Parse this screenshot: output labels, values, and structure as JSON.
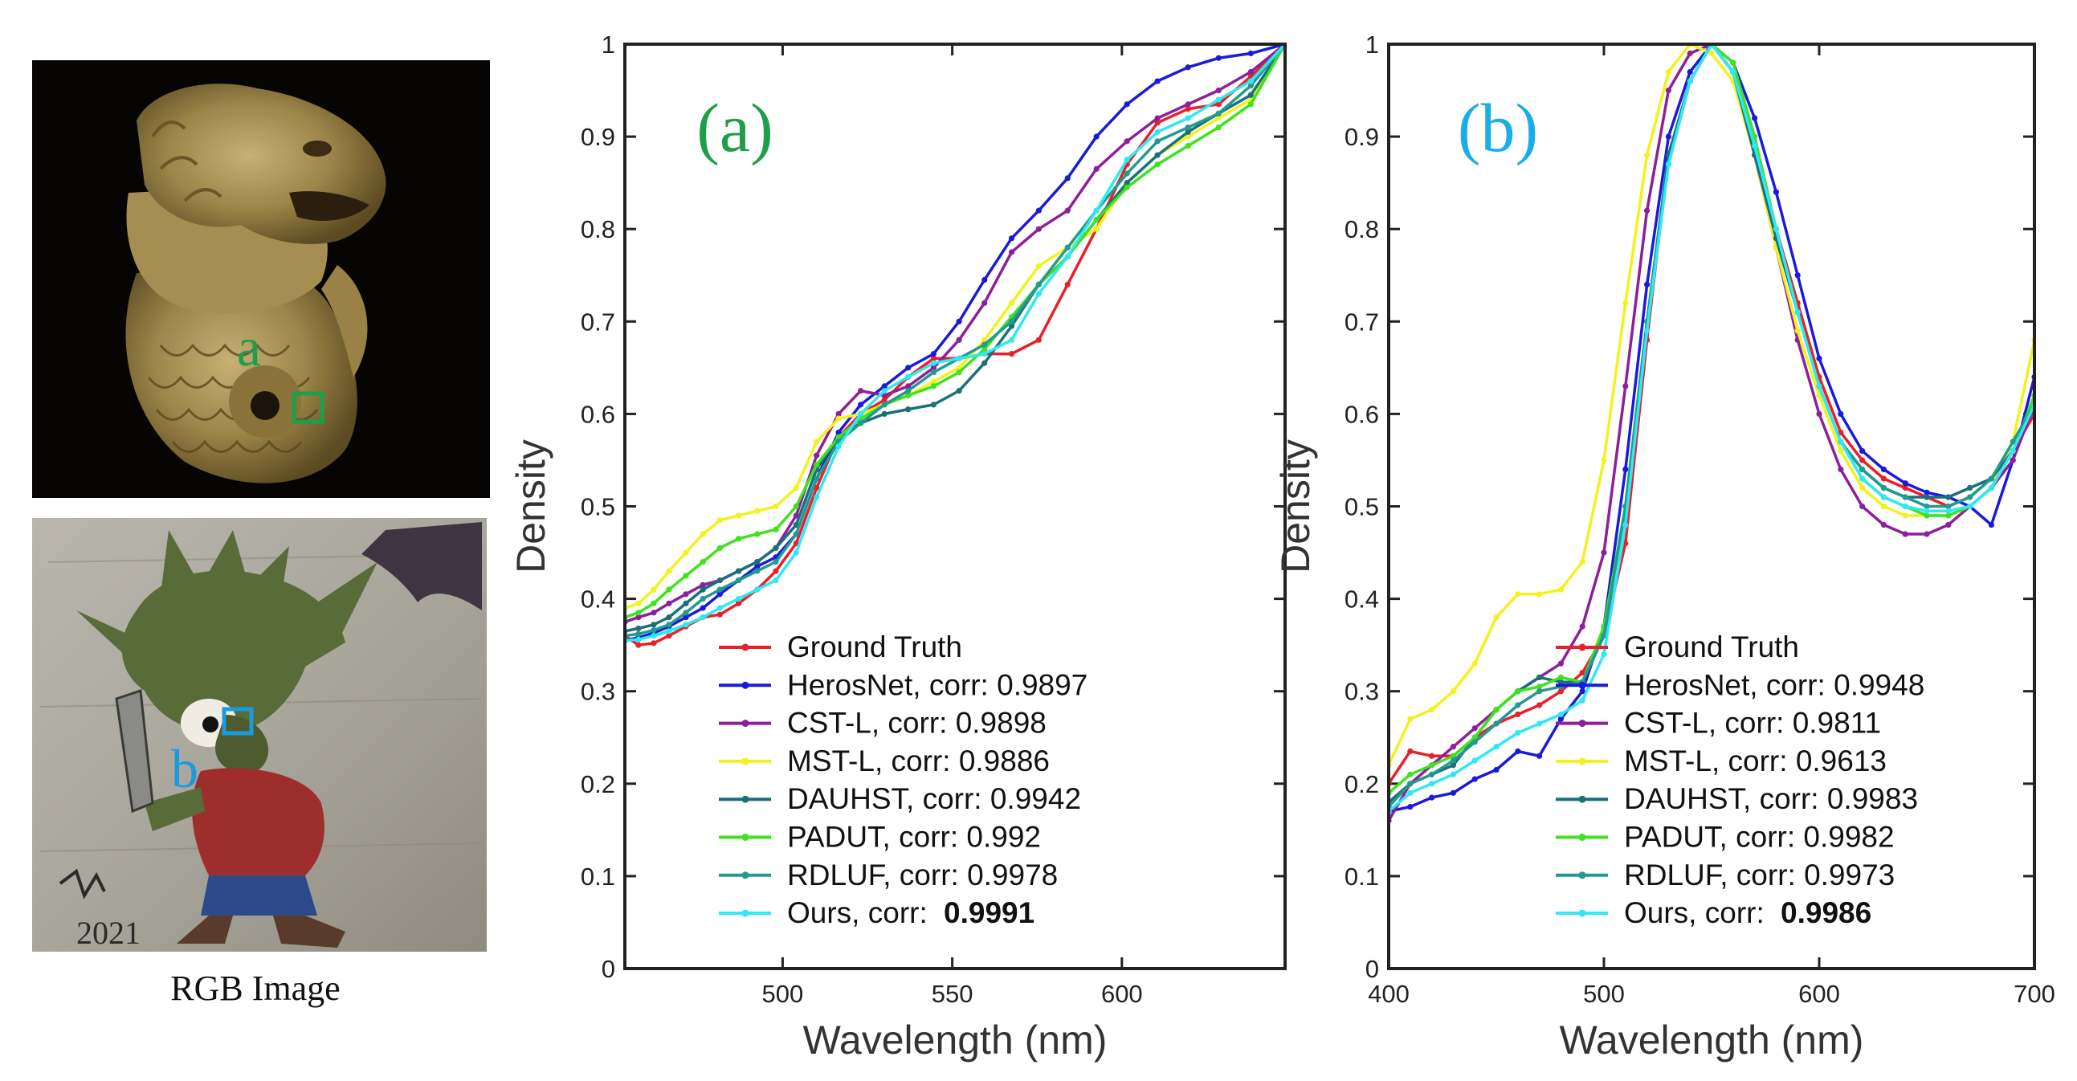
{
  "images": {
    "caption": "RGB Image",
    "top_marker": "a",
    "bottom_marker": "b",
    "signature": "2021",
    "top_marker_color": "#1f9e4a",
    "bottom_marker_color": "#1a9be0"
  },
  "colors": {
    "Ground Truth": "#e8202a",
    "HerosNet": "#1a1adb",
    "CST-L": "#8e1f9a",
    "MST-L": "#f2f21e",
    "DAUHST": "#1a6f7a",
    "PADUT": "#3fe21e",
    "RDLUF": "#239a90",
    "Ours": "#2ee8f4"
  },
  "chart_data": [
    {
      "type": "line",
      "panel_label": "(a)",
      "panel_color": "#1f9e4a",
      "xlabel": "Wavelength (nm)",
      "ylabel": "Density",
      "xlim": [
        453.5,
        648.1
      ],
      "ylim": [
        0,
        1
      ],
      "xticks": [
        500,
        550,
        600
      ],
      "yticks": [
        0,
        0.1,
        0.2,
        0.3,
        0.4,
        0.5,
        0.6,
        0.7,
        0.8,
        0.9,
        1
      ],
      "x": [
        453.5,
        457.5,
        462.0,
        466.5,
        471.5,
        476.5,
        481.5,
        487.0,
        492.5,
        498.0,
        504.0,
        510.0,
        516.5,
        523.0,
        530.0,
        537.0,
        544.5,
        552.0,
        559.5,
        567.5,
        575.5,
        584.0,
        592.5,
        601.5,
        610.5,
        619.5,
        628.5,
        638.0,
        648.1
      ],
      "series": [
        {
          "name": "Ground Truth",
          "label": "Ground Truth",
          "corr": "",
          "values": [
            0.36,
            0.35,
            0.352,
            0.36,
            0.37,
            0.38,
            0.383,
            0.395,
            0.41,
            0.43,
            0.46,
            0.52,
            0.575,
            0.6,
            0.615,
            0.64,
            0.66,
            0.66,
            0.665,
            0.665,
            0.68,
            0.74,
            0.8,
            0.87,
            0.915,
            0.93,
            0.935,
            0.965,
            1.0
          ]
        },
        {
          "name": "HerosNet",
          "label": "HerosNet, corr: ",
          "corr": "0.9897",
          "values": [
            0.355,
            0.358,
            0.363,
            0.37,
            0.38,
            0.39,
            0.405,
            0.42,
            0.435,
            0.445,
            0.47,
            0.53,
            0.58,
            0.61,
            0.63,
            0.65,
            0.665,
            0.7,
            0.745,
            0.79,
            0.82,
            0.855,
            0.9,
            0.935,
            0.96,
            0.975,
            0.985,
            0.99,
            1.0
          ]
        },
        {
          "name": "CST-L",
          "label": "CST-L, corr: ",
          "corr": "0.9898",
          "values": [
            0.375,
            0.38,
            0.385,
            0.395,
            0.405,
            0.415,
            0.42,
            0.43,
            0.44,
            0.455,
            0.49,
            0.555,
            0.6,
            0.625,
            0.62,
            0.63,
            0.65,
            0.68,
            0.72,
            0.775,
            0.8,
            0.82,
            0.865,
            0.895,
            0.92,
            0.935,
            0.95,
            0.97,
            1.0
          ]
        },
        {
          "name": "MST-L",
          "label": "MST-L, corr: ",
          "corr": "0.9886",
          "values": [
            0.39,
            0.395,
            0.41,
            0.43,
            0.45,
            0.47,
            0.485,
            0.49,
            0.495,
            0.5,
            0.52,
            0.57,
            0.595,
            0.6,
            0.61,
            0.62,
            0.635,
            0.65,
            0.68,
            0.72,
            0.76,
            0.78,
            0.8,
            0.85,
            0.88,
            0.9,
            0.92,
            0.94,
            1.0
          ]
        },
        {
          "name": "DAUHST",
          "label": "DAUHST, corr: ",
          "corr": "0.9942",
          "values": [
            0.365,
            0.368,
            0.372,
            0.38,
            0.395,
            0.41,
            0.42,
            0.43,
            0.44,
            0.455,
            0.48,
            0.54,
            0.575,
            0.59,
            0.6,
            0.605,
            0.61,
            0.625,
            0.655,
            0.695,
            0.74,
            0.77,
            0.81,
            0.85,
            0.88,
            0.905,
            0.925,
            0.945,
            1.0
          ]
        },
        {
          "name": "PADUT",
          "label": "PADUT, corr: ",
          "corr": "0.992",
          "values": [
            0.38,
            0.385,
            0.395,
            0.41,
            0.425,
            0.44,
            0.455,
            0.465,
            0.47,
            0.475,
            0.5,
            0.545,
            0.575,
            0.595,
            0.61,
            0.62,
            0.63,
            0.645,
            0.67,
            0.705,
            0.74,
            0.77,
            0.81,
            0.845,
            0.87,
            0.89,
            0.91,
            0.935,
            1.0
          ]
        },
        {
          "name": "RDLUF",
          "label": "RDLUF, corr: ",
          "corr": "0.9978",
          "values": [
            0.36,
            0.362,
            0.366,
            0.372,
            0.385,
            0.4,
            0.41,
            0.42,
            0.43,
            0.44,
            0.47,
            0.53,
            0.57,
            0.59,
            0.61,
            0.625,
            0.645,
            0.66,
            0.675,
            0.7,
            0.74,
            0.78,
            0.82,
            0.86,
            0.895,
            0.91,
            0.925,
            0.955,
            1.0
          ]
        },
        {
          "name": "Ours",
          "label": "Ours, corr:  ",
          "corr": "0.9991",
          "values": [
            0.355,
            0.356,
            0.36,
            0.365,
            0.372,
            0.38,
            0.39,
            0.4,
            0.41,
            0.42,
            0.45,
            0.51,
            0.565,
            0.6,
            0.625,
            0.64,
            0.655,
            0.66,
            0.665,
            0.68,
            0.73,
            0.77,
            0.82,
            0.875,
            0.905,
            0.92,
            0.94,
            0.96,
            1.0
          ]
        }
      ]
    },
    {
      "type": "line",
      "panel_label": "(b)",
      "panel_color": "#1aaee8",
      "xlabel": "Wavelength (nm)",
      "ylabel": "Density",
      "xlim": [
        400,
        700
      ],
      "ylim": [
        0,
        1
      ],
      "xticks": [
        400,
        500,
        600,
        700
      ],
      "yticks": [
        0,
        0.1,
        0.2,
        0.3,
        0.4,
        0.5,
        0.6,
        0.7,
        0.8,
        0.9,
        1
      ],
      "x": [
        400,
        410,
        420,
        430,
        440,
        450,
        460,
        470,
        480,
        490,
        500,
        510,
        520,
        530,
        540,
        550,
        560,
        570,
        580,
        590,
        600,
        610,
        620,
        630,
        640,
        650,
        660,
        670,
        680,
        690,
        700
      ],
      "series": [
        {
          "name": "Ground Truth",
          "label": "Ground Truth",
          "corr": "",
          "values": [
            0.2,
            0.235,
            0.23,
            0.23,
            0.25,
            0.265,
            0.275,
            0.285,
            0.3,
            0.32,
            0.36,
            0.46,
            0.68,
            0.88,
            0.96,
            1.0,
            0.97,
            0.89,
            0.8,
            0.72,
            0.64,
            0.58,
            0.55,
            0.53,
            0.52,
            0.51,
            0.5,
            0.51,
            0.53,
            0.56,
            0.6
          ]
        },
        {
          "name": "HerosNet",
          "label": "HerosNet, corr: ",
          "corr": "0.9948",
          "values": [
            0.17,
            0.175,
            0.185,
            0.19,
            0.205,
            0.215,
            0.235,
            0.23,
            0.27,
            0.3,
            0.37,
            0.54,
            0.74,
            0.9,
            0.97,
            1.0,
            0.98,
            0.92,
            0.84,
            0.75,
            0.66,
            0.6,
            0.56,
            0.54,
            0.525,
            0.515,
            0.51,
            0.5,
            0.48,
            0.55,
            0.64
          ]
        },
        {
          "name": "CST-L",
          "label": "CST-L, corr: ",
          "corr": "0.9811",
          "values": [
            0.16,
            0.2,
            0.22,
            0.24,
            0.26,
            0.28,
            0.3,
            0.315,
            0.33,
            0.37,
            0.45,
            0.63,
            0.82,
            0.95,
            0.99,
            1.0,
            0.97,
            0.88,
            0.78,
            0.68,
            0.6,
            0.54,
            0.5,
            0.48,
            0.47,
            0.47,
            0.48,
            0.5,
            0.52,
            0.55,
            0.61
          ]
        },
        {
          "name": "MST-L",
          "label": "MST-L, corr: ",
          "corr": "0.9613",
          "values": [
            0.22,
            0.27,
            0.28,
            0.3,
            0.33,
            0.38,
            0.405,
            0.405,
            0.41,
            0.44,
            0.55,
            0.72,
            0.88,
            0.97,
            1.0,
            0.99,
            0.96,
            0.88,
            0.78,
            0.69,
            0.62,
            0.56,
            0.52,
            0.5,
            0.49,
            0.49,
            0.49,
            0.5,
            0.52,
            0.57,
            0.68
          ]
        },
        {
          "name": "DAUHST",
          "label": "DAUHST, corr: ",
          "corr": "0.9983",
          "values": [
            0.18,
            0.2,
            0.21,
            0.22,
            0.25,
            0.28,
            0.3,
            0.315,
            0.31,
            0.31,
            0.36,
            0.5,
            0.7,
            0.88,
            0.96,
            1.0,
            0.97,
            0.88,
            0.79,
            0.71,
            0.63,
            0.57,
            0.54,
            0.52,
            0.51,
            0.51,
            0.51,
            0.52,
            0.53,
            0.56,
            0.62
          ]
        },
        {
          "name": "PADUT",
          "label": "PADUT, corr: ",
          "corr": "0.9982",
          "values": [
            0.19,
            0.21,
            0.22,
            0.23,
            0.25,
            0.28,
            0.3,
            0.305,
            0.315,
            0.31,
            0.37,
            0.5,
            0.7,
            0.87,
            0.96,
            1.0,
            0.98,
            0.9,
            0.8,
            0.71,
            0.63,
            0.57,
            0.53,
            0.51,
            0.5,
            0.49,
            0.49,
            0.5,
            0.52,
            0.56,
            0.62
          ]
        },
        {
          "name": "RDLUF",
          "label": "RDLUF, corr: ",
          "corr": "0.9973",
          "values": [
            0.175,
            0.2,
            0.21,
            0.225,
            0.245,
            0.265,
            0.285,
            0.3,
            0.305,
            0.31,
            0.36,
            0.5,
            0.7,
            0.87,
            0.96,
            1.0,
            0.97,
            0.89,
            0.8,
            0.71,
            0.63,
            0.57,
            0.54,
            0.52,
            0.51,
            0.5,
            0.5,
            0.51,
            0.53,
            0.57,
            0.61
          ]
        },
        {
          "name": "Ours",
          "label": "Ours, corr:  ",
          "corr": "0.9986",
          "values": [
            0.17,
            0.19,
            0.2,
            0.21,
            0.225,
            0.24,
            0.255,
            0.265,
            0.275,
            0.29,
            0.34,
            0.48,
            0.69,
            0.87,
            0.96,
            1.0,
            0.97,
            0.89,
            0.8,
            0.71,
            0.63,
            0.57,
            0.53,
            0.51,
            0.5,
            0.495,
            0.495,
            0.5,
            0.52,
            0.56,
            0.61
          ]
        }
      ]
    }
  ]
}
